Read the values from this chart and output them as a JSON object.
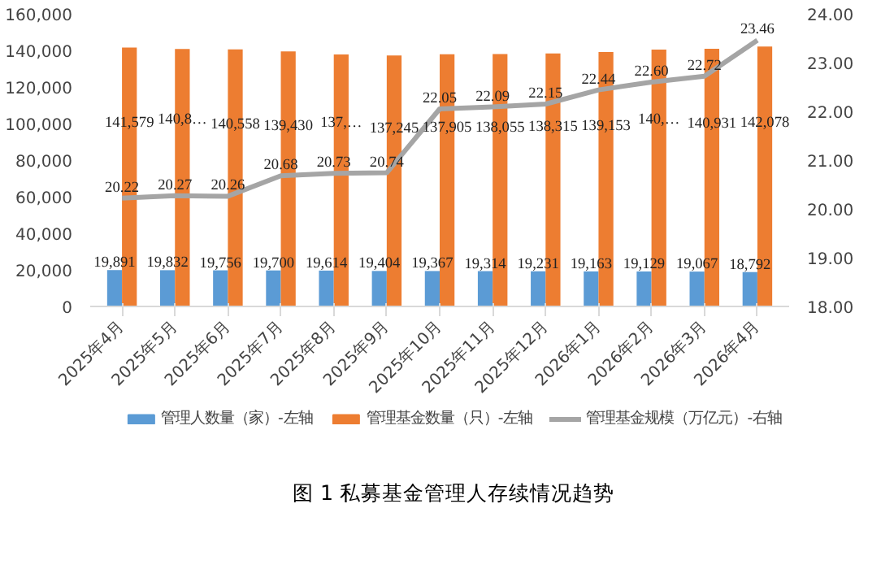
{
  "chart_data": {
    "type": "bar",
    "title": "图 1 私募基金管理人存续情况趋势",
    "categories": [
      "2025年4月",
      "2025年5月",
      "2025年6月",
      "2025年7月",
      "2025年8月",
      "2025年9月",
      "2025年10月",
      "2025年11月",
      "2025年12月",
      "2026年1月",
      "2026年2月",
      "2026年3月",
      "2026年4月"
    ],
    "series": [
      {
        "name": "管理人数量（家）-左轴",
        "color": "#5b9bd5",
        "values": [
          19891,
          19832,
          19756,
          19700,
          19614,
          19404,
          19367,
          19314,
          19231,
          19163,
          19129,
          19067,
          18792
        ],
        "value_labels": [
          "19,891",
          "19,832",
          "19,756",
          "19,700",
          "19,614",
          "19,404",
          "19,367",
          "19,314",
          "19,231",
          "19,163",
          "19,129",
          "19,067",
          "18,792"
        ]
      },
      {
        "name": "管理基金数量（只）-左轴",
        "color": "#ed7d31",
        "values": [
          141579,
          140800,
          140558,
          139430,
          137800,
          137245,
          137905,
          138055,
          138315,
          139153,
          140500,
          140931,
          142078
        ],
        "value_labels": [
          "141,579",
          "140,8…",
          "140,558",
          "139,430",
          "137,…",
          "137,245",
          "137,905",
          "138,055",
          "138,315",
          "139,153",
          "140,…",
          "140,931",
          "142,078"
        ]
      },
      {
        "name": "管理基金规模（万亿元）-右轴",
        "type": "line",
        "axis": "y2",
        "color": "#a5a5a5",
        "values": [
          20.22,
          20.27,
          20.26,
          20.68,
          20.73,
          20.74,
          22.05,
          22.09,
          22.15,
          22.44,
          22.6,
          22.72,
          23.46
        ],
        "value_labels": [
          "20.22",
          "20.27",
          "20.26",
          "20.68",
          "20.73",
          "20.74",
          "22.05",
          "22.09",
          "22.15",
          "22.44",
          "22.60",
          "22.72",
          "23.46"
        ]
      }
    ],
    "ylim": [
      0,
      160000
    ],
    "yticks": [
      {
        "value": 0,
        "label": "0"
      },
      {
        "value": 20000,
        "label": "20,000"
      },
      {
        "value": 40000,
        "label": "40,000"
      },
      {
        "value": 60000,
        "label": "60,000"
      },
      {
        "value": 80000,
        "label": "80,000"
      },
      {
        "value": 100000,
        "label": "100,000"
      },
      {
        "value": 120000,
        "label": "120,000"
      },
      {
        "value": 140000,
        "label": "140,000"
      },
      {
        "value": 160000,
        "label": "160,000"
      }
    ],
    "y2lim": [
      18,
      24
    ],
    "y2ticks": [
      {
        "value": 18,
        "label": "18.00"
      },
      {
        "value": 19,
        "label": "19.00"
      },
      {
        "value": 20,
        "label": "20.00"
      },
      {
        "value": 21,
        "label": "21.00"
      },
      {
        "value": 22,
        "label": "22.00"
      },
      {
        "value": 23,
        "label": "23.00"
      },
      {
        "value": 24,
        "label": "24.00"
      }
    ],
    "legend": "bottom",
    "grid": false,
    "marker": "none",
    "line_style": "solid"
  }
}
